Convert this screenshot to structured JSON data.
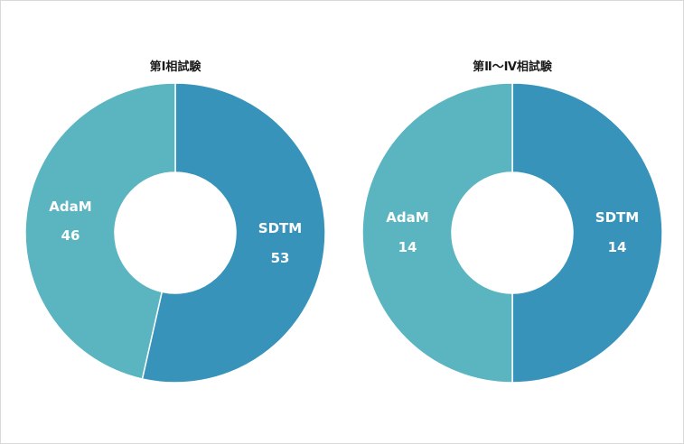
{
  "colors": {
    "sdtm": "#3793BA",
    "adam": "#5AB5C0",
    "frame_border": "#d9d9d9"
  },
  "chart_data": [
    {
      "type": "pie",
      "variant": "donut",
      "title": "第Ⅰ相試験",
      "slices": [
        {
          "label": "SDTM",
          "value": 53
        },
        {
          "label": "AdaM",
          "value": 46
        }
      ],
      "legend": "none",
      "grid": false
    },
    {
      "type": "pie",
      "variant": "donut",
      "title": "第Ⅱ～Ⅳ相試験",
      "slices": [
        {
          "label": "SDTM",
          "value": 14
        },
        {
          "label": "AdaM",
          "value": 14
        }
      ],
      "legend": "none",
      "grid": false
    }
  ]
}
